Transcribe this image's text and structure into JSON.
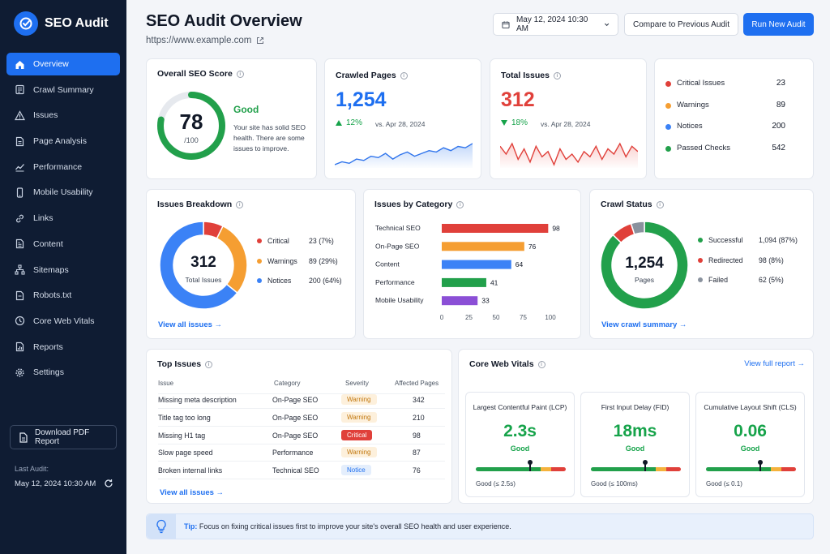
{
  "app": {
    "name": "SEO Audit"
  },
  "nav": [
    {
      "label": "Overview",
      "icon": "home-icon"
    },
    {
      "label": "Crawl Summary",
      "icon": "crawl-icon"
    },
    {
      "label": "Issues",
      "icon": "warning-icon"
    },
    {
      "label": "Page Analysis",
      "icon": "page-icon"
    },
    {
      "label": "Performance",
      "icon": "chart-line-icon"
    },
    {
      "label": "Mobile Usability",
      "icon": "mobile-icon"
    },
    {
      "label": "Links",
      "icon": "link-icon"
    },
    {
      "label": "Content",
      "icon": "document-icon"
    },
    {
      "label": "Sitemaps",
      "icon": "sitemap-icon"
    },
    {
      "label": "Robots.txt",
      "icon": "robot-icon"
    },
    {
      "label": "Core Web Vitals",
      "icon": "speed-icon"
    },
    {
      "label": "Reports",
      "icon": "report-icon"
    },
    {
      "label": "Settings",
      "icon": "gear-icon"
    }
  ],
  "sidebar": {
    "download_label": "Download PDF Report",
    "last_audit_label": "Last Audit:",
    "last_audit_value": "May 12, 2024 10:30 AM"
  },
  "header": {
    "title": "SEO Audit Overview",
    "url": "https://www.example.com",
    "date": "May 12, 2024 10:30 AM",
    "compare_label": "Compare to Previous Audit",
    "run_label": "Run New Audit"
  },
  "score": {
    "title": "Overall SEO Score",
    "value": "78",
    "max": "/100",
    "fraction": 0.78,
    "status": "Good",
    "desc": "Your site has solid SEO health. There are some issues to improve.",
    "color": "#22a04b"
  },
  "crawled": {
    "title": "Crawled Pages",
    "value": "1,254",
    "change": "12%",
    "compare": "vs. Apr 28, 2024",
    "color": "#1e6ff0"
  },
  "total_issues": {
    "title": "Total Issues",
    "value": "312",
    "change": "18%",
    "compare": "vs. Apr 28, 2024",
    "color": "#e0403a"
  },
  "summary": [
    {
      "label": "Critical Issues",
      "value": "23",
      "color": "#e0403a"
    },
    {
      "label": "Warnings",
      "value": "89",
      "color": "#f59e32"
    },
    {
      "label": "Notices",
      "value": "200",
      "color": "#3b82f6"
    },
    {
      "label": "Passed Checks",
      "value": "542",
      "color": "#22a04b"
    }
  ],
  "issues_breakdown": {
    "title": "Issues Breakdown",
    "center_value": "312",
    "center_label": "Total Issues",
    "link": "View all issues →"
  },
  "issues_by_category": {
    "title": "Issues by Category"
  },
  "crawl_status": {
    "title": "Crawl Status",
    "center_value": "1,254",
    "center_label": "Pages",
    "link": "View crawl summary →"
  },
  "chart_data": [
    {
      "type": "pie",
      "title": "Issues Breakdown",
      "labels": [
        "Critical",
        "Warnings",
        "Notices"
      ],
      "values": [
        23,
        89,
        200
      ],
      "display": [
        "23 (7%)",
        "89 (29%)",
        "200 (64%)"
      ],
      "colors": [
        "#e0403a",
        "#f59e32",
        "#3b82f6"
      ]
    },
    {
      "type": "bar",
      "title": "Issues by Category",
      "categories": [
        "Technical SEO",
        "On-Page SEO",
        "Content",
        "Performance",
        "Mobile Usability"
      ],
      "values": [
        98,
        76,
        64,
        41,
        33
      ],
      "colors": [
        "#e0403a",
        "#f59e32",
        "#3b82f6",
        "#22a04b",
        "#8b4fd6"
      ],
      "xlim": [
        0,
        100
      ],
      "xticks": [
        0,
        25,
        50,
        75,
        100
      ]
    },
    {
      "type": "pie",
      "title": "Crawl Status",
      "labels": [
        "Successful",
        "Redirected",
        "Failed"
      ],
      "values": [
        1094,
        98,
        62
      ],
      "display": [
        "1,094 (87%)",
        "98 (8%)",
        "62 (5%)"
      ],
      "colors": [
        "#22a04b",
        "#e0403a",
        "#8a929e"
      ]
    },
    {
      "type": "area",
      "title": "Crawled Pages",
      "values": [
        10,
        12,
        11,
        14,
        13,
        16,
        15,
        18,
        14,
        17,
        19,
        16,
        18,
        20,
        19,
        22,
        20,
        23,
        22,
        25
      ]
    },
    {
      "type": "area",
      "title": "Total Issues",
      "values": [
        22,
        19,
        23,
        17,
        21,
        16,
        22,
        18,
        20,
        15,
        21,
        17,
        19,
        16,
        20,
        18,
        22,
        17,
        21,
        19,
        23,
        18,
        22,
        20
      ]
    }
  ],
  "top_issues": {
    "title": "Top Issues",
    "columns": [
      "Issue",
      "Category",
      "Severity",
      "Affected Pages"
    ],
    "rows": [
      {
        "issue": "Missing meta description",
        "category": "On-Page SEO",
        "severity": "Warning",
        "pages": "342"
      },
      {
        "issue": "Title tag too long",
        "category": "On-Page SEO",
        "severity": "Warning",
        "pages": "210"
      },
      {
        "issue": "Missing H1 tag",
        "category": "On-Page SEO",
        "severity": "Critical",
        "pages": "98"
      },
      {
        "issue": "Slow page speed",
        "category": "Performance",
        "severity": "Warning",
        "pages": "87"
      },
      {
        "issue": "Broken internal links",
        "category": "Technical SEO",
        "severity": "Notice",
        "pages": "76"
      }
    ],
    "link": "View all issues →"
  },
  "cwv": {
    "title": "Core Web Vitals",
    "link": "View full report →",
    "items": [
      {
        "title": "Largest Contentful Paint (LCP)",
        "value": "2.3s",
        "status": "Good",
        "footer": "Good (≤ 2.5s)",
        "marker": 0.6
      },
      {
        "title": "First Input Delay (FID)",
        "value": "18ms",
        "status": "Good",
        "footer": "Good (≤ 100ms)",
        "marker": 0.6
      },
      {
        "title": "Cumulative Layout Shift (CLS)",
        "value": "0.06",
        "status": "Good",
        "footer": "Good (≤ 0.1)",
        "marker": 0.6
      }
    ]
  },
  "tip": {
    "label": "Tip:",
    "text": "Focus on fixing critical issues first to improve your site's overall SEO health and user experience."
  }
}
